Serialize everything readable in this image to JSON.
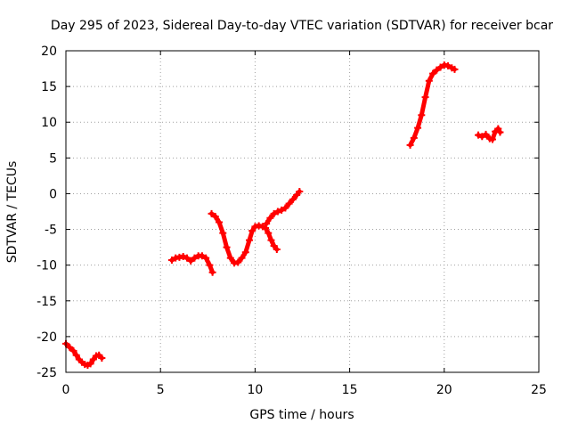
{
  "chart_data": {
    "type": "scatter",
    "title": "Day 295 of 2023, Sidereal Day-to-day VTEC variation (SDTVAR) for receiver bcar",
    "xlabel": "GPS time / hours",
    "ylabel": "SDTVAR / TECUs",
    "xlim": [
      0,
      25
    ],
    "ylim": [
      -25,
      20
    ],
    "xticks": [
      0,
      5,
      10,
      15,
      20,
      25
    ],
    "yticks": [
      -25,
      -20,
      -15,
      -10,
      -5,
      0,
      5,
      10,
      15,
      20
    ],
    "grid": true,
    "legend": "none",
    "marker_color": "#ff0000",
    "series": [
      {
        "segments": [
          [
            [
              0.0,
              -21.0
            ],
            [
              0.2,
              -21.5
            ],
            [
              0.4,
              -22.0
            ],
            [
              0.55,
              -22.6
            ],
            [
              0.7,
              -23.2
            ],
            [
              0.85,
              -23.6
            ],
            [
              1.0,
              -23.9
            ],
            [
              1.15,
              -24.0
            ],
            [
              1.3,
              -23.8
            ],
            [
              1.45,
              -23.2
            ],
            [
              1.6,
              -22.7
            ],
            [
              1.75,
              -22.6
            ],
            [
              1.9,
              -23.0
            ]
          ],
          [
            [
              5.6,
              -9.3
            ],
            [
              5.8,
              -9.0
            ],
            [
              6.0,
              -8.9
            ],
            [
              6.2,
              -8.8
            ],
            [
              6.4,
              -9.0
            ],
            [
              6.6,
              -9.4
            ],
            [
              6.8,
              -9.0
            ],
            [
              7.0,
              -8.7
            ],
            [
              7.2,
              -8.7
            ],
            [
              7.4,
              -9.0
            ],
            [
              7.6,
              -10.0
            ],
            [
              7.75,
              -11.0
            ]
          ],
          [
            [
              7.7,
              -2.8
            ],
            [
              7.9,
              -3.2
            ],
            [
              8.1,
              -4.0
            ],
            [
              8.3,
              -5.5
            ],
            [
              8.5,
              -7.5
            ],
            [
              8.7,
              -9.0
            ],
            [
              8.9,
              -9.7
            ],
            [
              9.1,
              -9.6
            ],
            [
              9.3,
              -9.0
            ],
            [
              9.5,
              -8.2
            ],
            [
              9.7,
              -6.5
            ],
            [
              9.85,
              -5.2
            ],
            [
              10.0,
              -4.6
            ],
            [
              10.2,
              -4.5
            ],
            [
              10.4,
              -4.6
            ],
            [
              10.55,
              -4.8
            ],
            [
              10.7,
              -5.5
            ],
            [
              10.85,
              -6.5
            ],
            [
              11.0,
              -7.3
            ],
            [
              11.15,
              -7.8
            ]
          ],
          [
            [
              10.6,
              -4.2
            ],
            [
              10.8,
              -3.4
            ],
            [
              11.0,
              -2.8
            ],
            [
              11.2,
              -2.5
            ],
            [
              11.4,
              -2.3
            ],
            [
              11.6,
              -2.0
            ],
            [
              11.8,
              -1.4
            ],
            [
              12.0,
              -0.8
            ],
            [
              12.2,
              -0.2
            ],
            [
              12.35,
              0.3
            ]
          ],
          [
            [
              18.2,
              6.8
            ],
            [
              18.4,
              7.8
            ],
            [
              18.6,
              9.2
            ],
            [
              18.8,
              11.0
            ],
            [
              19.0,
              13.5
            ],
            [
              19.2,
              15.8
            ],
            [
              19.4,
              16.8
            ],
            [
              19.6,
              17.3
            ],
            [
              19.8,
              17.7
            ],
            [
              20.0,
              18.0
            ],
            [
              20.2,
              17.9
            ],
            [
              20.4,
              17.6
            ],
            [
              20.55,
              17.4
            ]
          ],
          [
            [
              21.8,
              8.2
            ],
            [
              22.0,
              8.0
            ],
            [
              22.2,
              8.3
            ],
            [
              22.4,
              7.7
            ],
            [
              22.55,
              7.6
            ],
            [
              22.7,
              8.7
            ],
            [
              22.85,
              9.1
            ],
            [
              22.95,
              8.6
            ]
          ]
        ]
      }
    ]
  }
}
